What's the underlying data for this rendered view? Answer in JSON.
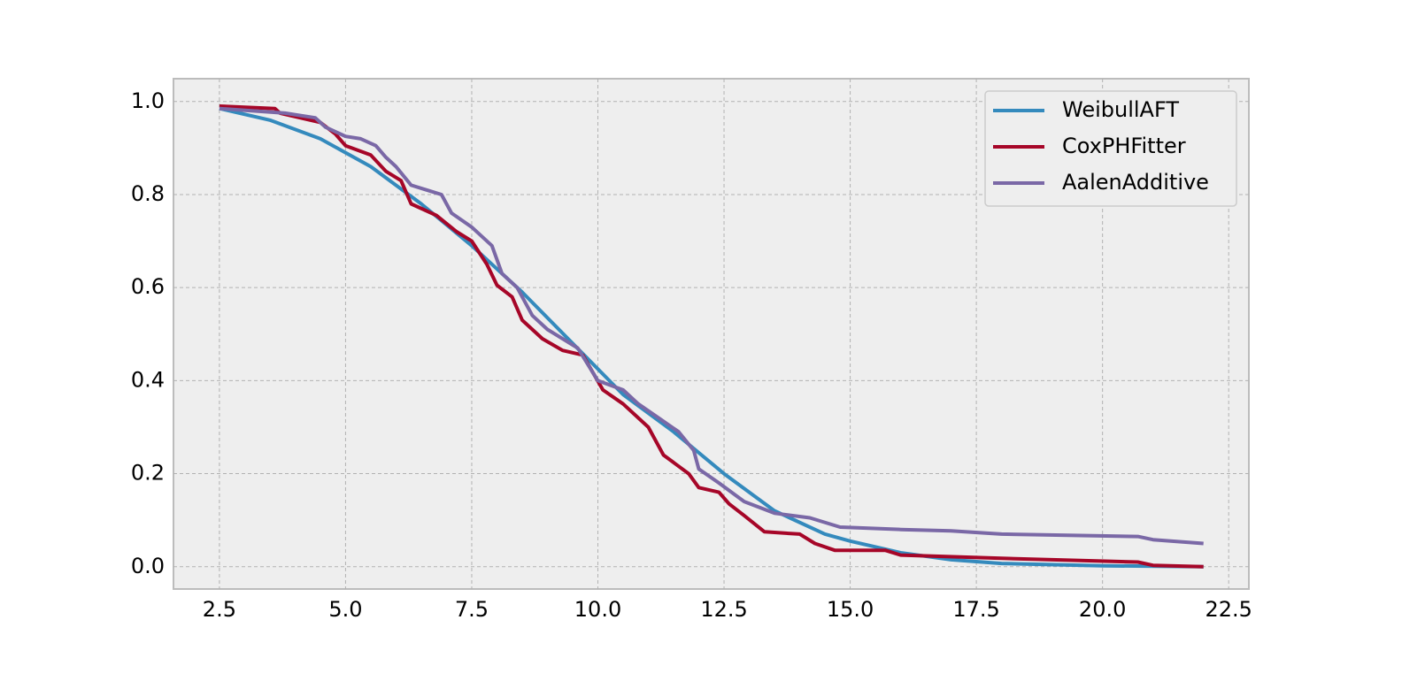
{
  "chart_data": {
    "type": "line",
    "xlim": [
      1.59,
      22.9
    ],
    "ylim": [
      -0.048,
      1.049
    ],
    "xticks": [
      2.5,
      {
        "value": 5,
        "label": "5.0"
      },
      7.5,
      {
        "value": 10,
        "label": "10.0"
      },
      12.5,
      {
        "value": 15,
        "label": "15.0"
      },
      17.5,
      {
        "value": 20,
        "label": "20.0"
      },
      22.5
    ],
    "yticks": [
      {
        "value": 0,
        "label": "0.0"
      },
      0.2,
      0.4,
      0.6,
      0.8,
      {
        "value": 1,
        "label": "1.0"
      }
    ],
    "grid": true,
    "legend": "upper right",
    "series": [
      {
        "name": "WeibullAFT",
        "color": "#348abd",
        "x": [
          2.5,
          3.5,
          4.5,
          5.5,
          6.5,
          7.5,
          8.5,
          9.5,
          10.5,
          11.5,
          12.5,
          13.5,
          14.5,
          15,
          16,
          17,
          18,
          20,
          22
        ],
        "values": [
          0.985,
          0.96,
          0.92,
          0.86,
          0.78,
          0.69,
          0.59,
          0.48,
          0.37,
          0.29,
          0.2,
          0.12,
          0.07,
          0.055,
          0.03,
          0.015,
          0.007,
          0.002,
          0.0
        ]
      },
      {
        "name": "CoxPHFitter",
        "color": "#a60628",
        "x": [
          2.5,
          3.6,
          3.7,
          4.5,
          4.8,
          5.0,
          5.5,
          5.8,
          6.1,
          6.3,
          6.8,
          7.2,
          7.5,
          7.8,
          8.0,
          8.3,
          8.5,
          8.9,
          9.3,
          9.7,
          10.1,
          10.5,
          11.0,
          11.3,
          11.8,
          12.0,
          12.4,
          12.6,
          12.9,
          13.3,
          14.0,
          14.3,
          14.7,
          15.7,
          16.0,
          18,
          20.7,
          21.0,
          22
        ],
        "values": [
          0.99,
          0.985,
          0.975,
          0.955,
          0.93,
          0.905,
          0.885,
          0.85,
          0.83,
          0.78,
          0.755,
          0.72,
          0.7,
          0.65,
          0.605,
          0.58,
          0.53,
          0.49,
          0.465,
          0.455,
          0.38,
          0.35,
          0.3,
          0.24,
          0.2,
          0.17,
          0.16,
          0.135,
          0.11,
          0.075,
          0.07,
          0.05,
          0.035,
          0.035,
          0.025,
          0.018,
          0.01,
          0.003,
          0.0
        ]
      },
      {
        "name": "AalenAdditive",
        "color": "#7a68a6",
        "x": [
          2.5,
          3.8,
          4.4,
          4.6,
          5.0,
          5.3,
          5.6,
          5.8,
          6.0,
          6.3,
          6.6,
          6.9,
          7.1,
          7.5,
          7.9,
          8.1,
          8.4,
          8.7,
          9.0,
          9.3,
          9.6,
          10.0,
          10.5,
          10.8,
          11.2,
          11.6,
          11.9,
          12.0,
          12.4,
          12.9,
          13.5,
          14.2,
          14.8,
          16,
          17,
          18,
          20.7,
          21,
          22
        ],
        "values": [
          0.985,
          0.975,
          0.965,
          0.945,
          0.925,
          0.92,
          0.905,
          0.88,
          0.86,
          0.82,
          0.81,
          0.8,
          0.76,
          0.73,
          0.69,
          0.63,
          0.6,
          0.54,
          0.51,
          0.49,
          0.47,
          0.4,
          0.38,
          0.35,
          0.32,
          0.29,
          0.25,
          0.21,
          0.18,
          0.14,
          0.115,
          0.105,
          0.085,
          0.08,
          0.077,
          0.07,
          0.065,
          0.058,
          0.05
        ]
      }
    ]
  }
}
